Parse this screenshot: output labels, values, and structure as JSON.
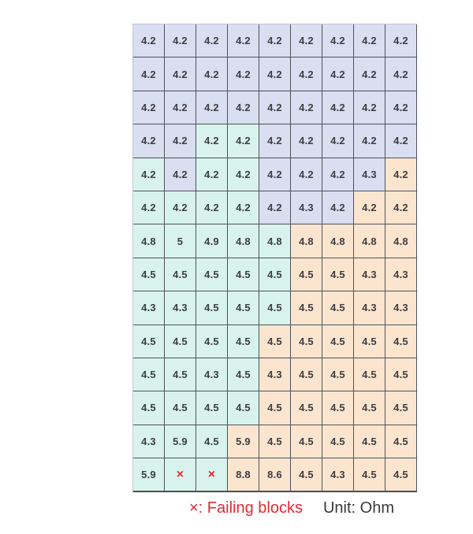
{
  "figure": {
    "fail_symbol": "×",
    "legend": {
      "failing_label": "×: Failing blocks",
      "unit_label": "Unit: Ohm"
    }
  },
  "colors": {
    "cell_lavender": "#d9def1",
    "cell_mint": "#d8f3ec",
    "cell_peach": "#fce5cf",
    "fail_red": "#e02b33",
    "grid_line": "#4e535a",
    "cell_text": "#3d3d42"
  },
  "chart_data": {
    "type": "heatmap",
    "title": "",
    "unit": "Ohm",
    "xlabel": "",
    "ylabel": "",
    "grid": {
      "rows": 14,
      "cols": 9
    },
    "values": [
      [
        "4.2",
        "4.2",
        "4.2",
        "4.2",
        "4.2",
        "4.2",
        "4.2",
        "4.2",
        "4.2"
      ],
      [
        "4.2",
        "4.2",
        "4.2",
        "4.2",
        "4.2",
        "4.2",
        "4.2",
        "4.2",
        "4.2"
      ],
      [
        "4.2",
        "4.2",
        "4.2",
        "4.2",
        "4.2",
        "4.2",
        "4.2",
        "4.2",
        "4.2"
      ],
      [
        "4.2",
        "4.2",
        "4.2",
        "4.2",
        "4.2",
        "4.2",
        "4.2",
        "4.2",
        "4.2"
      ],
      [
        "4.2",
        "4.2",
        "4.2",
        "4.2",
        "4.2",
        "4.2",
        "4.2",
        "4.3",
        "4.2"
      ],
      [
        "4.2",
        "4.2",
        "4.2",
        "4.2",
        "4.2",
        "4.3",
        "4.2",
        "4.2",
        "4.2"
      ],
      [
        "4.8",
        "5",
        "4.9",
        "4.8",
        "4.8",
        "4.8",
        "4.8",
        "4.8",
        "4.8"
      ],
      [
        "4.5",
        "4.5",
        "4.5",
        "4.5",
        "4.5",
        "4.5",
        "4.5",
        "4.3",
        "4.3"
      ],
      [
        "4.3",
        "4.3",
        "4.5",
        "4.5",
        "4.5",
        "4.5",
        "4.5",
        "4.3",
        "4.3"
      ],
      [
        "4.5",
        "4.5",
        "4.5",
        "4.5",
        "4.5",
        "4.5",
        "4.5",
        "4.5",
        "4.5"
      ],
      [
        "4.5",
        "4.5",
        "4.3",
        "4.5",
        "4.3",
        "4.5",
        "4.5",
        "4.5",
        "4.5"
      ],
      [
        "4.5",
        "4.5",
        "4.5",
        "4.5",
        "4.5",
        "4.5",
        "4.5",
        "4.5",
        "4.5"
      ],
      [
        "4.3",
        "5.9",
        "4.5",
        "5.9",
        "4.5",
        "4.5",
        "4.5",
        "4.5",
        "4.5"
      ],
      [
        "5.9",
        "×",
        "×",
        "8.8",
        "8.6",
        "4.5",
        "4.3",
        "4.5",
        "4.5"
      ]
    ],
    "cell_colors": [
      "LLLLLLLLL",
      "LLLLLLLLL",
      "LLLLLLLLL",
      "LLMMLLLLL",
      "MLMMLLLLP",
      "MMMMLLLPP",
      "MMMMMPPPP",
      "MMMMMPPPP",
      "MMMMMPPPP",
      "MMMMPPPPP",
      "MMMMPPPPP",
      "MMMMPPPPP",
      "MMMPPPPPP",
      "MMMPPPPPP"
    ],
    "color_key": {
      "L": "#d9def1",
      "M": "#d8f3ec",
      "P": "#fce5cf"
    },
    "failing_cells": [
      {
        "row": 14,
        "col": 2
      },
      {
        "row": 14,
        "col": 3
      }
    ],
    "legend_entries": [
      "×: Failing blocks",
      "Unit: Ohm"
    ],
    "legend_position": "bottom"
  }
}
